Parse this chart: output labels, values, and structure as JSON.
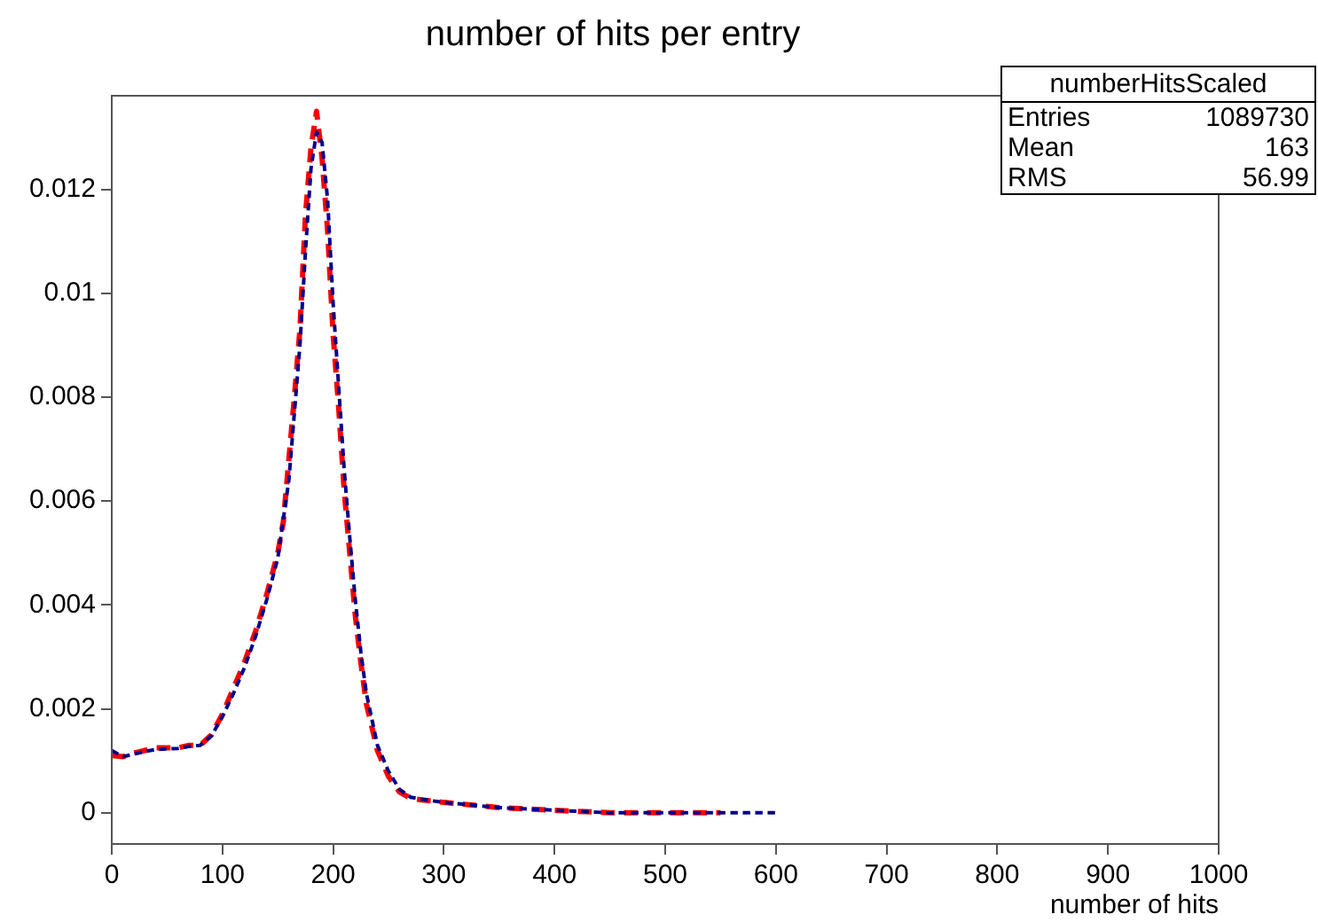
{
  "chart_data": {
    "type": "line",
    "title": "number of hits per entry",
    "xlabel": "number of hits",
    "xlim": [
      0,
      1000
    ],
    "xticks": [
      0,
      100,
      200,
      300,
      400,
      500,
      600,
      700,
      800,
      900,
      1000
    ],
    "ylim": [
      -0.0006,
      0.0138
    ],
    "yticks": [
      0,
      0.002,
      0.004,
      0.006,
      0.008,
      0.01,
      0.012
    ],
    "grid": false,
    "legend": false,
    "marker": "none",
    "line_style": "dashed",
    "annotations": [
      "numberHitsScaled",
      "Entries",
      "1089730",
      "Mean",
      "163",
      "RMS",
      "56.99"
    ],
    "series": [
      {
        "color": "#00008b",
        "x": [
          0,
          10,
          20,
          30,
          40,
          50,
          60,
          70,
          80,
          90,
          100,
          110,
          120,
          130,
          140,
          150,
          160,
          165,
          170,
          175,
          180,
          185,
          190,
          195,
          200,
          205,
          210,
          215,
          220,
          225,
          230,
          240,
          250,
          260,
          270,
          280,
          300,
          350,
          400,
          450,
          500,
          550,
          600
        ],
        "values": [
          0.0012,
          0.00108,
          0.00113,
          0.00118,
          0.00122,
          0.00123,
          0.00124,
          0.00128,
          0.0013,
          0.00148,
          0.00185,
          0.0023,
          0.0028,
          0.0034,
          0.0041,
          0.0049,
          0.0064,
          0.0077,
          0.009,
          0.0108,
          0.0124,
          0.0131,
          0.0129,
          0.0118,
          0.0098,
          0.0082,
          0.0066,
          0.0053,
          0.0041,
          0.0031,
          0.0023,
          0.0013,
          0.0008,
          0.00045,
          0.0003,
          0.00026,
          0.0002,
          0.0001,
          5e-05,
          0,
          0,
          0,
          0
        ]
      },
      {
        "color": "#ff0000",
        "x": [
          0,
          10,
          20,
          30,
          40,
          50,
          60,
          70,
          80,
          90,
          100,
          110,
          120,
          130,
          140,
          150,
          155,
          160,
          165,
          170,
          175,
          180,
          185,
          190,
          195,
          200,
          205,
          210,
          215,
          220,
          225,
          230,
          240,
          250,
          260,
          270,
          280,
          300,
          350,
          400,
          450,
          500,
          550
        ],
        "values": [
          0.0011,
          0.00108,
          0.00115,
          0.0012,
          0.00125,
          0.00125,
          0.00125,
          0.0013,
          0.0013,
          0.0015,
          0.0019,
          0.0024,
          0.0029,
          0.0035,
          0.0042,
          0.005,
          0.0056,
          0.0068,
          0.008,
          0.0093,
          0.0115,
          0.0128,
          0.0135,
          0.0126,
          0.0112,
          0.0092,
          0.0078,
          0.0062,
          0.005,
          0.0038,
          0.0029,
          0.0021,
          0.0012,
          0.0007,
          0.0004,
          0.00028,
          0.00025,
          0.0002,
          0.0001,
          5e-05,
          0,
          0,
          0
        ]
      }
    ]
  }
}
